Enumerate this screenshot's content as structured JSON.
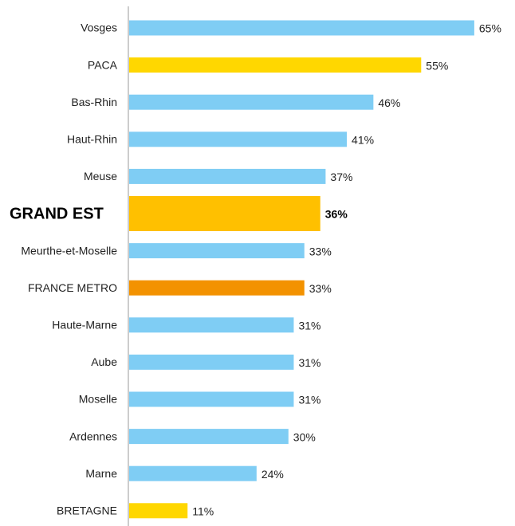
{
  "chart_data": {
    "type": "hbar",
    "categories": [
      "Vosges",
      "PACA",
      "Bas-Rhin",
      "Haut-Rhin",
      "Meuse",
      "GRAND EST",
      "Meurthe-et-Moselle",
      "FRANCE METRO",
      "Haute-Marne",
      "Aube",
      "Moselle",
      "Ardennes",
      "Marne",
      "BRETAGNE"
    ],
    "values": [
      65,
      55,
      46,
      41,
      37,
      36,
      33,
      33,
      31,
      31,
      31,
      30,
      24,
      11
    ],
    "value_labels": [
      "65%",
      "55%",
      "46%",
      "41%",
      "37%",
      "36%",
      "33%",
      "33%",
      "31%",
      "31%",
      "31%",
      "30%",
      "24%",
      "11%"
    ],
    "colors": [
      "#7fcdf4",
      "#ffd700",
      "#7fcdf4",
      "#7fcdf4",
      "#7fcdf4",
      "#ffc000",
      "#7fcdf4",
      "#f39200",
      "#7fcdf4",
      "#7fcdf4",
      "#7fcdf4",
      "#7fcdf4",
      "#7fcdf4",
      "#ffd700"
    ]
  }
}
